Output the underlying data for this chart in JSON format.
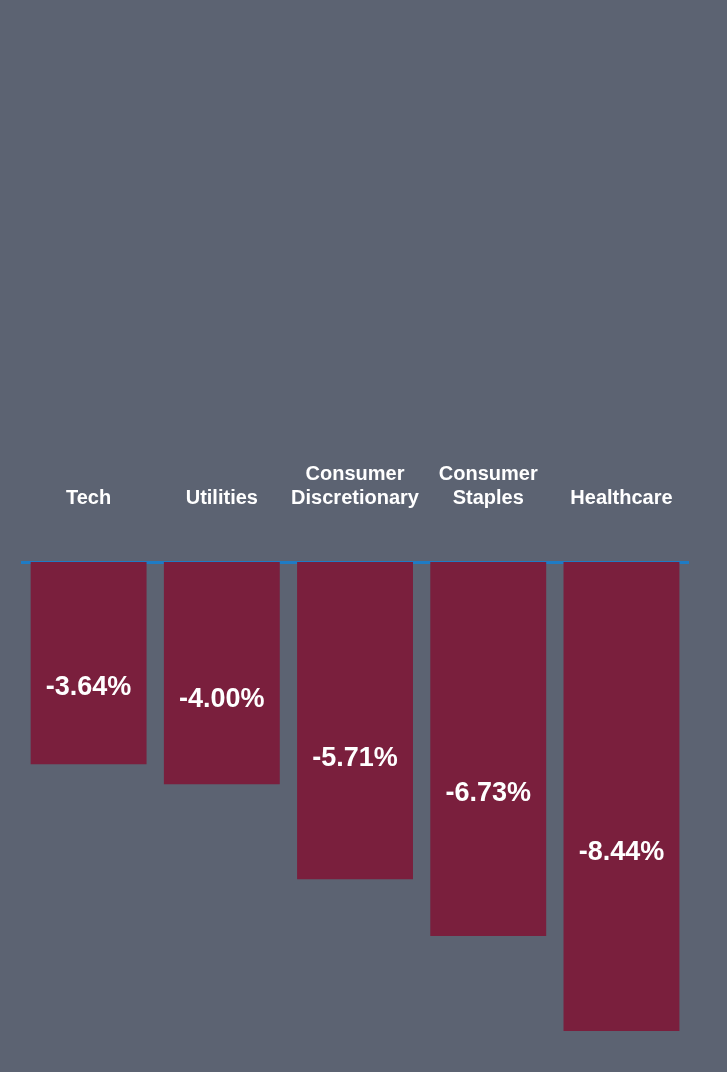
{
  "chart_data": {
    "type": "bar",
    "categories": [
      "Tech",
      "Utilities",
      "Consumer Discretionary",
      "Consumer Staples",
      "Healthcare"
    ],
    "values": [
      -3.64,
      -4.0,
      -5.71,
      -6.73,
      -8.44
    ],
    "value_labels": [
      "-3.64%",
      "-4.00%",
      "-5.71%",
      "-6.73%",
      "-8.44%"
    ],
    "color": "#7a1f3d",
    "grid": false,
    "legend": false
  }
}
